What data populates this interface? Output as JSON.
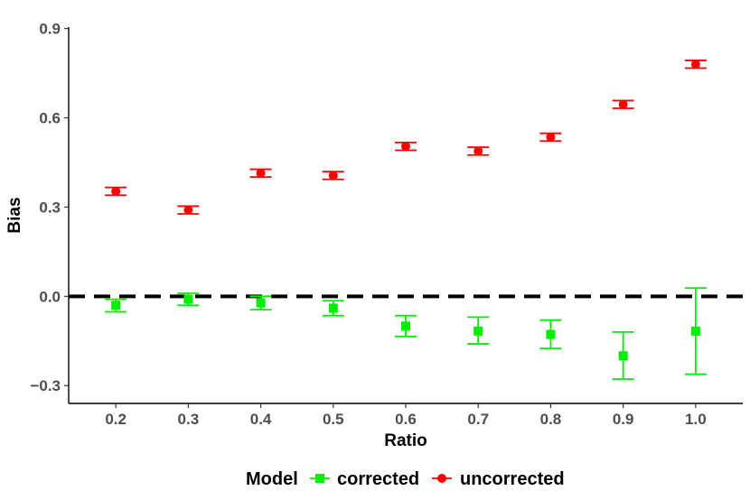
{
  "chart_data": {
    "type": "scatter",
    "title": "",
    "xlabel": "Ratio",
    "ylabel": "Bias",
    "x": [
      0.2,
      0.3,
      0.4,
      0.5,
      0.6,
      0.7,
      0.8,
      0.9,
      1.0
    ],
    "x_tick_labels": [
      "0.2",
      "0.3",
      "0.4",
      "0.5",
      "0.6",
      "0.7",
      "0.8",
      "0.9",
      "1.0"
    ],
    "xlim": [
      0.135,
      1.065
    ],
    "ylim": [
      -0.36,
      0.905
    ],
    "y_ticks": [
      -0.3,
      0.0,
      0.3,
      0.6,
      0.9
    ],
    "y_tick_labels": [
      "−0.3",
      "0.0",
      "0.3",
      "0.6",
      "0.9"
    ],
    "reference_line": {
      "y": 0.0,
      "style": "dashed",
      "color": "#000000"
    },
    "grid": false,
    "legend": {
      "title": "Model",
      "position": "bottom"
    },
    "series": [
      {
        "name": "corrected",
        "color": "#00ee00",
        "marker": "square",
        "values": [
          -0.03,
          -0.01,
          -0.022,
          -0.04,
          -0.1,
          -0.117,
          -0.128,
          -0.2,
          -0.117
        ],
        "lower": [
          -0.052,
          -0.03,
          -0.045,
          -0.065,
          -0.135,
          -0.16,
          -0.175,
          -0.278,
          -0.262
        ],
        "upper": [
          -0.01,
          0.01,
          0.0,
          -0.015,
          -0.065,
          -0.07,
          -0.08,
          -0.12,
          0.028
        ]
      },
      {
        "name": "uncorrected",
        "color": "#ff0000",
        "marker": "circle",
        "values": [
          0.353,
          0.29,
          0.414,
          0.406,
          0.504,
          0.488,
          0.535,
          0.645,
          0.78
        ],
        "lower": [
          0.34,
          0.277,
          0.401,
          0.393,
          0.491,
          0.475,
          0.522,
          0.632,
          0.767
        ],
        "upper": [
          0.366,
          0.303,
          0.427,
          0.419,
          0.517,
          0.501,
          0.548,
          0.658,
          0.793
        ]
      }
    ]
  }
}
